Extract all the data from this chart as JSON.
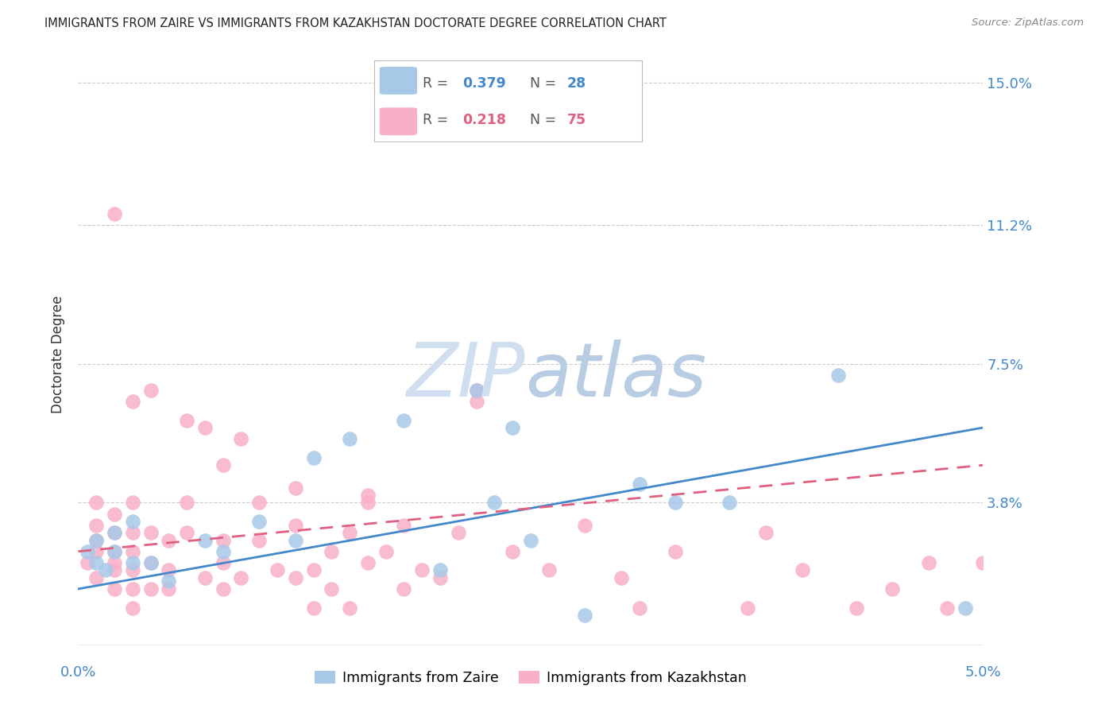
{
  "title": "IMMIGRANTS FROM ZAIRE VS IMMIGRANTS FROM KAZAKHSTAN DOCTORATE DEGREE CORRELATION CHART",
  "source": "Source: ZipAtlas.com",
  "ylabel_label": "Doctorate Degree",
  "x_min": 0.0,
  "x_max": 0.05,
  "y_min": 0.0,
  "y_max": 0.155,
  "ytick_vals": [
    0.0,
    0.038,
    0.075,
    0.112,
    0.15
  ],
  "ytick_labels": [
    "",
    "3.8%",
    "7.5%",
    "11.2%",
    "15.0%"
  ],
  "xtick_vals": [
    0.0,
    0.01,
    0.02,
    0.03,
    0.04,
    0.05
  ],
  "xtick_labels": [
    "0.0%",
    "",
    "",
    "",
    "",
    "5.0%"
  ],
  "zaire_color": "#a8c8e8",
  "zaire_line_color": "#4488cc",
  "kazakhstan_color": "#f8b0c8",
  "kazakhstan_line_color": "#e06080",
  "background_color": "#ffffff",
  "grid_color": "#cccccc",
  "watermark_color": "#d0dff0",
  "zaire_scatter_x": [
    0.0005,
    0.001,
    0.001,
    0.0015,
    0.002,
    0.002,
    0.003,
    0.003,
    0.004,
    0.005,
    0.007,
    0.008,
    0.01,
    0.012,
    0.013,
    0.015,
    0.018,
    0.02,
    0.022,
    0.023,
    0.024,
    0.025,
    0.028,
    0.031,
    0.033,
    0.036,
    0.042,
    0.049
  ],
  "zaire_scatter_y": [
    0.025,
    0.022,
    0.028,
    0.02,
    0.025,
    0.03,
    0.022,
    0.033,
    0.022,
    0.017,
    0.028,
    0.025,
    0.033,
    0.028,
    0.05,
    0.055,
    0.06,
    0.02,
    0.068,
    0.038,
    0.058,
    0.028,
    0.008,
    0.043,
    0.038,
    0.038,
    0.072,
    0.01
  ],
  "kazakhstan_scatter_x": [
    0.0005,
    0.001,
    0.001,
    0.001,
    0.001,
    0.001,
    0.002,
    0.002,
    0.002,
    0.002,
    0.002,
    0.002,
    0.003,
    0.003,
    0.003,
    0.003,
    0.003,
    0.003,
    0.004,
    0.004,
    0.004,
    0.005,
    0.005,
    0.005,
    0.006,
    0.006,
    0.007,
    0.007,
    0.008,
    0.008,
    0.008,
    0.009,
    0.009,
    0.01,
    0.01,
    0.011,
    0.012,
    0.012,
    0.013,
    0.013,
    0.014,
    0.014,
    0.015,
    0.015,
    0.016,
    0.016,
    0.017,
    0.018,
    0.018,
    0.019,
    0.02,
    0.021,
    0.022,
    0.024,
    0.026,
    0.028,
    0.03,
    0.031,
    0.033,
    0.037,
    0.038,
    0.04,
    0.043,
    0.045,
    0.047,
    0.048,
    0.05,
    0.002,
    0.003,
    0.004,
    0.006,
    0.008,
    0.012,
    0.016,
    0.022
  ],
  "kazakhstan_scatter_y": [
    0.022,
    0.018,
    0.025,
    0.028,
    0.032,
    0.038,
    0.015,
    0.02,
    0.022,
    0.025,
    0.03,
    0.035,
    0.01,
    0.015,
    0.02,
    0.025,
    0.03,
    0.038,
    0.015,
    0.022,
    0.03,
    0.015,
    0.02,
    0.028,
    0.03,
    0.038,
    0.018,
    0.058,
    0.015,
    0.022,
    0.028,
    0.018,
    0.055,
    0.028,
    0.038,
    0.02,
    0.018,
    0.032,
    0.01,
    0.02,
    0.015,
    0.025,
    0.01,
    0.03,
    0.022,
    0.04,
    0.025,
    0.015,
    0.032,
    0.02,
    0.018,
    0.03,
    0.065,
    0.025,
    0.02,
    0.032,
    0.018,
    0.01,
    0.025,
    0.01,
    0.03,
    0.02,
    0.01,
    0.015,
    0.022,
    0.01,
    0.022,
    0.115,
    0.065,
    0.068,
    0.06,
    0.048,
    0.042,
    0.038,
    0.068
  ],
  "zaire_line_x": [
    0.0,
    0.05
  ],
  "zaire_line_y": [
    0.015,
    0.058
  ],
  "kaz_line_x": [
    0.0,
    0.05
  ],
  "kaz_line_y": [
    0.025,
    0.048
  ]
}
